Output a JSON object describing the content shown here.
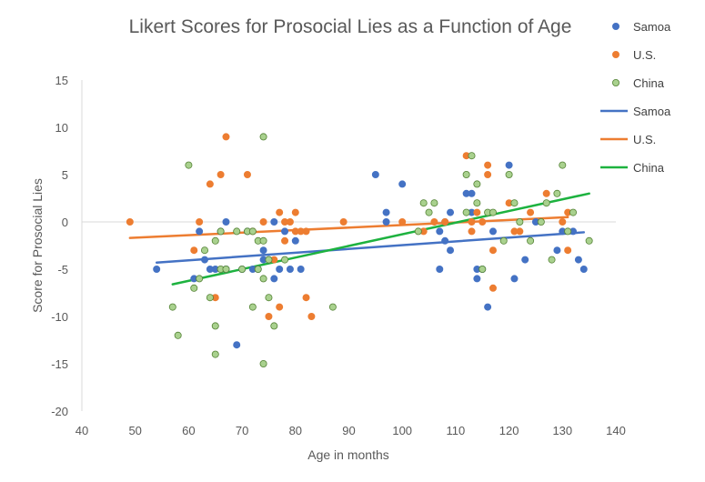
{
  "chart_data": {
    "type": "scatter",
    "title": "Likert Scores for Prosocial Lies as a Function of Age",
    "xlabel": "Age in months",
    "ylabel": "Score for Prosocial Lies",
    "xlim": [
      40,
      140
    ],
    "ylim": [
      -20,
      15
    ],
    "xticks": [
      40,
      50,
      60,
      70,
      80,
      90,
      100,
      110,
      120,
      130,
      140
    ],
    "yticks": [
      -20,
      -15,
      -10,
      -5,
      0,
      5,
      10,
      15
    ],
    "grid": false,
    "legend_position": "right",
    "series": [
      {
        "name": "Samoa",
        "kind": "points",
        "color": "#4472C4",
        "points": [
          [
            54,
            -5
          ],
          [
            61,
            -6
          ],
          [
            62,
            -1
          ],
          [
            63,
            -4
          ],
          [
            64,
            -5
          ],
          [
            65,
            -5
          ],
          [
            66,
            -1
          ],
          [
            67,
            0
          ],
          [
            67,
            -5
          ],
          [
            69,
            -13
          ],
          [
            70,
            -5
          ],
          [
            71,
            -1
          ],
          [
            72,
            -5
          ],
          [
            73,
            -5
          ],
          [
            74,
            -3
          ],
          [
            74,
            -4
          ],
          [
            75,
            -4
          ],
          [
            76,
            0
          ],
          [
            76,
            -6
          ],
          [
            77,
            -5
          ],
          [
            78,
            -1
          ],
          [
            79,
            -5
          ],
          [
            80,
            -2
          ],
          [
            81,
            -5
          ],
          [
            95,
            5
          ],
          [
            97,
            1
          ],
          [
            97,
            0
          ],
          [
            100,
            4
          ],
          [
            107,
            -5
          ],
          [
            107,
            -1
          ],
          [
            108,
            0
          ],
          [
            108,
            -2
          ],
          [
            109,
            -3
          ],
          [
            109,
            1
          ],
          [
            112,
            3
          ],
          [
            113,
            3
          ],
          [
            113,
            1
          ],
          [
            114,
            -6
          ],
          [
            114,
            -5
          ],
          [
            115,
            -5
          ],
          [
            116,
            -9
          ],
          [
            117,
            -1
          ],
          [
            120,
            6
          ],
          [
            121,
            -6
          ],
          [
            123,
            -4
          ],
          [
            125,
            0
          ],
          [
            129,
            -3
          ],
          [
            130,
            -1
          ],
          [
            132,
            -1
          ],
          [
            133,
            -4
          ],
          [
            134,
            -5
          ]
        ]
      },
      {
        "name": "U.S.",
        "kind": "points",
        "color": "#ED7D31",
        "points": [
          [
            49,
            0
          ],
          [
            61,
            -3
          ],
          [
            62,
            0
          ],
          [
            64,
            4
          ],
          [
            65,
            -8
          ],
          [
            66,
            5
          ],
          [
            67,
            9
          ],
          [
            71,
            5
          ],
          [
            72,
            -1
          ],
          [
            74,
            0
          ],
          [
            75,
            -10
          ],
          [
            76,
            -4
          ],
          [
            77,
            1
          ],
          [
            77,
            -9
          ],
          [
            78,
            0
          ],
          [
            78,
            -2
          ],
          [
            79,
            0
          ],
          [
            80,
            1
          ],
          [
            80,
            -1
          ],
          [
            81,
            -1
          ],
          [
            82,
            -1
          ],
          [
            82,
            -8
          ],
          [
            83,
            -10
          ],
          [
            89,
            0
          ],
          [
            100,
            0
          ],
          [
            104,
            -1
          ],
          [
            106,
            0
          ],
          [
            108,
            0
          ],
          [
            112,
            7
          ],
          [
            113,
            -1
          ],
          [
            113,
            0
          ],
          [
            114,
            1
          ],
          [
            115,
            0
          ],
          [
            116,
            6
          ],
          [
            116,
            5
          ],
          [
            117,
            -3
          ],
          [
            117,
            -7
          ],
          [
            120,
            2
          ],
          [
            121,
            -1
          ],
          [
            122,
            -1
          ],
          [
            124,
            1
          ],
          [
            127,
            3
          ],
          [
            130,
            0
          ],
          [
            131,
            1
          ],
          [
            131,
            -3
          ]
        ]
      },
      {
        "name": "China",
        "kind": "points",
        "color": "#70AD47",
        "points": [
          [
            57,
            -9
          ],
          [
            58,
            -12
          ],
          [
            60,
            6
          ],
          [
            61,
            -7
          ],
          [
            62,
            -6
          ],
          [
            63,
            -3
          ],
          [
            64,
            -8
          ],
          [
            65,
            -2
          ],
          [
            65,
            -11
          ],
          [
            65,
            -14
          ],
          [
            66,
            -1
          ],
          [
            66,
            -5
          ],
          [
            67,
            -5
          ],
          [
            69,
            -1
          ],
          [
            70,
            -5
          ],
          [
            71,
            -1
          ],
          [
            72,
            -9
          ],
          [
            72,
            -1
          ],
          [
            73,
            -2
          ],
          [
            73,
            -5
          ],
          [
            74,
            -2
          ],
          [
            74,
            -6
          ],
          [
            74,
            9
          ],
          [
            74,
            -15
          ],
          [
            75,
            -8
          ],
          [
            75,
            -4
          ],
          [
            76,
            -11
          ],
          [
            78,
            -4
          ],
          [
            87,
            -9
          ],
          [
            103,
            -1
          ],
          [
            104,
            2
          ],
          [
            105,
            1
          ],
          [
            106,
            2
          ],
          [
            112,
            5
          ],
          [
            112,
            1
          ],
          [
            113,
            7
          ],
          [
            114,
            2
          ],
          [
            114,
            4
          ],
          [
            115,
            -5
          ],
          [
            116,
            1
          ],
          [
            117,
            1
          ],
          [
            119,
            -2
          ],
          [
            120,
            5
          ],
          [
            121,
            2
          ],
          [
            122,
            0
          ],
          [
            124,
            -2
          ],
          [
            126,
            0
          ],
          [
            127,
            2
          ],
          [
            128,
            -4
          ],
          [
            129,
            3
          ],
          [
            130,
            6
          ],
          [
            131,
            -1
          ],
          [
            132,
            1
          ],
          [
            135,
            -2
          ]
        ]
      },
      {
        "name": "Samoa",
        "kind": "trendline",
        "color": "#4472C4",
        "points": [
          [
            54,
            -4.3
          ],
          [
            134,
            -1.1
          ]
        ]
      },
      {
        "name": "U.S.",
        "kind": "trendline",
        "color": "#ED7D31",
        "points": [
          [
            49,
            -1.7
          ],
          [
            131,
            0.5
          ]
        ]
      },
      {
        "name": "China",
        "kind": "trendline",
        "color": "#1DB23F",
        "points": [
          [
            57,
            -6.6
          ],
          [
            135,
            3.0
          ]
        ]
      }
    ]
  }
}
